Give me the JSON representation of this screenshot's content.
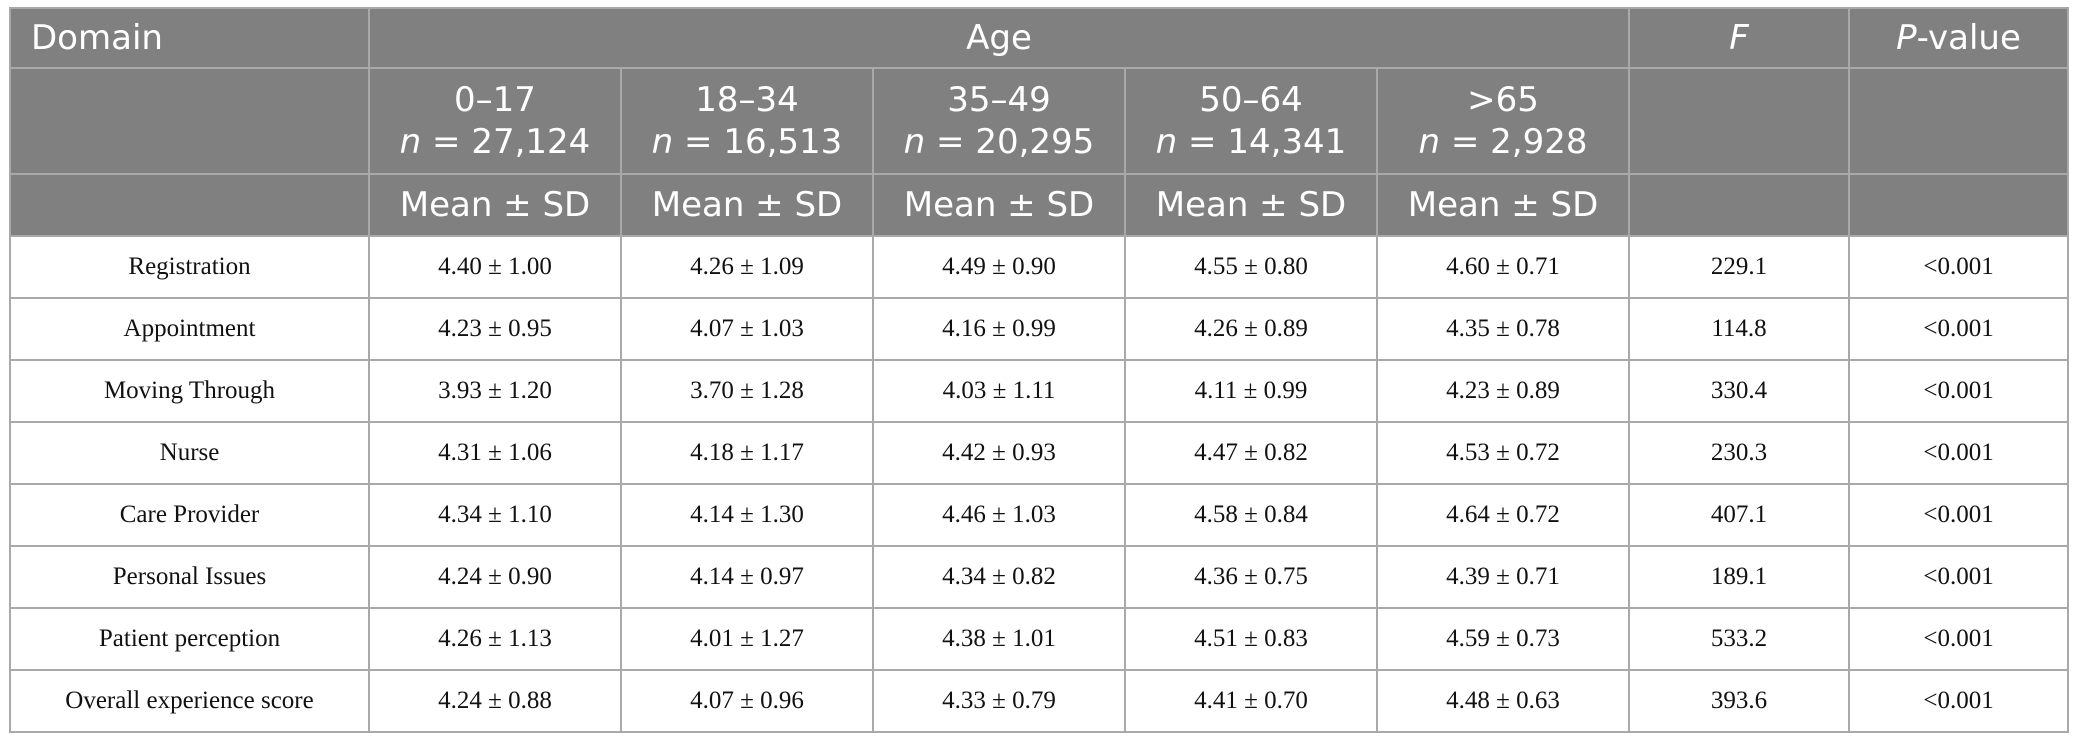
{
  "table": {
    "header": {
      "domain": "Domain",
      "age": "Age",
      "f": "F",
      "p_value": {
        "italic": "P",
        "text": "-value"
      },
      "age_groups": [
        {
          "range": "0–17",
          "n_label": "n",
          "n_value": "= 27,124"
        },
        {
          "range": "18–34",
          "n_label": "n",
          "n_value": "= 16,513"
        },
        {
          "range": "35–49",
          "n_label": "n",
          "n_value": "= 20,295"
        },
        {
          "range": "50–64",
          "n_label": "n",
          "n_value": "= 14,341"
        },
        {
          "range": ">65",
          "n_label": "n",
          "n_value": "= 2,928"
        }
      ],
      "stat": [
        "Mean ± SD",
        "Mean ± SD",
        "Mean ± SD",
        "Mean ± SD",
        "Mean ± SD"
      ]
    },
    "rows": [
      [
        "Registration",
        "4.40 ± 1.00",
        "4.26 ± 1.09",
        "4.49 ± 0.90",
        "4.55 ± 0.80",
        "4.60 ± 0.71",
        "229.1",
        "<0.001"
      ],
      [
        "Appointment",
        "4.23 ± 0.95",
        "4.07 ± 1.03",
        "4.16 ± 0.99",
        "4.26 ± 0.89",
        "4.35 ± 0.78",
        "114.8",
        "<0.001"
      ],
      [
        "Moving Through",
        "3.93 ± 1.20",
        "3.70 ± 1.28",
        "4.03 ± 1.11",
        "4.11 ± 0.99",
        "4.23 ± 0.89",
        "330.4",
        "<0.001"
      ],
      [
        "Nurse",
        "4.31 ± 1.06",
        "4.18 ± 1.17",
        "4.42 ± 0.93",
        "4.47 ± 0.82",
        "4.53 ± 0.72",
        "230.3",
        "<0.001"
      ],
      [
        "Care Provider",
        "4.34 ± 1.10",
        "4.14 ± 1.30",
        "4.46 ± 1.03",
        "4.58 ± 0.84",
        "4.64 ± 0.72",
        "407.1",
        "<0.001"
      ],
      [
        "Personal Issues",
        "4.24 ± 0.90",
        "4.14 ± 0.97",
        "4.34 ± 0.82",
        "4.36 ± 0.75",
        "4.39 ± 0.71",
        "189.1",
        "<0.001"
      ],
      [
        "Patient perception",
        "4.26 ± 1.13",
        "4.01 ± 1.27",
        "4.38 ± 1.01",
        "4.51 ± 0.83",
        "4.59 ± 0.73",
        "533.2",
        "<0.001"
      ],
      [
        "Overall experience score",
        "4.24 ± 0.88",
        "4.07 ± 0.96",
        "4.33 ± 0.79",
        "4.41 ± 0.70",
        "4.48 ± 0.63",
        "393.6",
        "<0.001"
      ]
    ]
  }
}
